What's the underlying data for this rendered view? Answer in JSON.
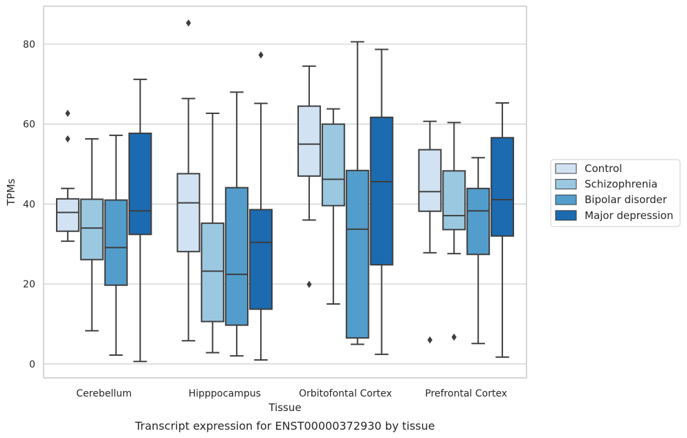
{
  "chart_data": {
    "type": "boxplot",
    "xlabel": "Tissue",
    "ylabel": "TPMs",
    "caption": "Transcript expression for ENST00000372930 by tissue",
    "ylim": [
      -3.5,
      89.5
    ],
    "yticks": [
      0,
      20,
      40,
      60,
      80
    ],
    "grid": "horizontal",
    "legend_position": "right",
    "categories": [
      "Cerebellum",
      "Hipppocampus",
      "Orbitofontal Cortex",
      "Prefrontal Cortex"
    ],
    "series": [
      {
        "name": "Control",
        "color": "#d1e2f2",
        "boxes": [
          {
            "whisker_low": 30.7,
            "q1": 33.2,
            "median": 37.9,
            "q3": 41.3,
            "whisker_high": 43.9,
            "outliers": [
              62.7,
              56.3
            ]
          },
          {
            "whisker_low": 5.8,
            "q1": 28.1,
            "median": 40.3,
            "q3": 47.6,
            "whisker_high": 66.4,
            "outliers": [
              85.3
            ]
          },
          {
            "whisker_low": 36.0,
            "q1": 47.0,
            "median": 55.0,
            "q3": 64.5,
            "whisker_high": 74.5,
            "outliers": [
              19.9
            ]
          },
          {
            "whisker_low": 27.8,
            "q1": 38.2,
            "median": 43.1,
            "q3": 53.6,
            "whisker_high": 60.7,
            "outliers": [
              6.0
            ]
          }
        ]
      },
      {
        "name": "Schizophrenia",
        "color": "#9ac8e0",
        "boxes": [
          {
            "whisker_low": 8.3,
            "q1": 26.1,
            "median": 34.0,
            "q3": 41.2,
            "whisker_high": 56.3,
            "outliers": []
          },
          {
            "whisker_low": 2.8,
            "q1": 10.6,
            "median": 23.2,
            "q3": 35.2,
            "whisker_high": 62.7,
            "outliers": []
          },
          {
            "whisker_low": 15.0,
            "q1": 39.6,
            "median": 46.2,
            "q3": 60.0,
            "whisker_high": 63.8,
            "outliers": []
          },
          {
            "whisker_low": 27.6,
            "q1": 33.6,
            "median": 37.1,
            "q3": 48.3,
            "whisker_high": 60.4,
            "outliers": [
              6.7
            ]
          }
        ]
      },
      {
        "name": "Bipolar disorder",
        "color": "#529dcc",
        "boxes": [
          {
            "whisker_low": 2.2,
            "q1": 19.7,
            "median": 29.1,
            "q3": 41.0,
            "whisker_high": 57.2,
            "outliers": []
          },
          {
            "whisker_low": 2.0,
            "q1": 9.7,
            "median": 22.4,
            "q3": 44.1,
            "whisker_high": 68.0,
            "outliers": []
          },
          {
            "whisker_low": 4.9,
            "q1": 6.5,
            "median": 33.7,
            "q3": 48.4,
            "whisker_high": 80.6,
            "outliers": []
          },
          {
            "whisker_low": 5.1,
            "q1": 27.4,
            "median": 38.3,
            "q3": 43.9,
            "whisker_high": 51.6,
            "outliers": []
          }
        ]
      },
      {
        "name": "Major depression",
        "color": "#1c6aaf",
        "boxes": [
          {
            "whisker_low": 0.6,
            "q1": 32.4,
            "median": 38.3,
            "q3": 57.7,
            "whisker_high": 71.2,
            "outliers": []
          },
          {
            "whisker_low": 1.0,
            "q1": 13.7,
            "median": 30.4,
            "q3": 38.6,
            "whisker_high": 65.2,
            "outliers": [
              77.3
            ]
          },
          {
            "whisker_low": 2.4,
            "q1": 24.8,
            "median": 45.6,
            "q3": 61.7,
            "whisker_high": 78.7,
            "outliers": []
          },
          {
            "whisker_low": 1.7,
            "q1": 32.0,
            "median": 41.1,
            "q3": 56.6,
            "whisker_high": 65.3,
            "outliers": []
          }
        ]
      }
    ]
  }
}
